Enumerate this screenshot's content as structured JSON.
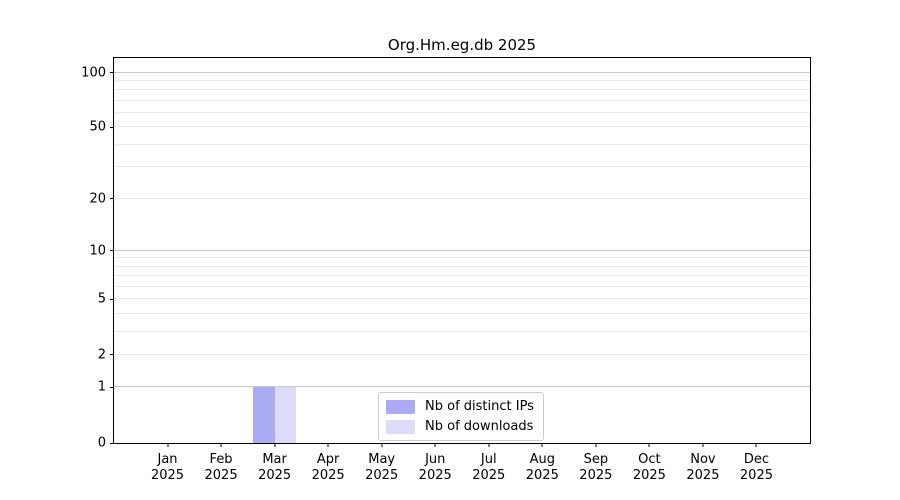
{
  "title": "Org.Hm.eg.db 2025",
  "colors": {
    "background": "#ffffff",
    "axis": "#000000",
    "text": "#000000",
    "grid_major": "#c8c8c8",
    "grid_minor": "#ebebeb",
    "legend_border": "#cccccc",
    "bar_distinct_ips": "#aaaaf5",
    "bar_downloads": "#dcdcfa"
  },
  "chart_data": {
    "type": "bar",
    "title": "Org.Hm.eg.db 2025",
    "categories": [
      "Jan 2025",
      "Feb 2025",
      "Mar 2025",
      "Apr 2025",
      "May 2025",
      "Jun 2025",
      "Jul 2025",
      "Aug 2025",
      "Sep 2025",
      "Oct 2025",
      "Nov 2025",
      "Dec 2025"
    ],
    "series": [
      {
        "name": "Nb of distinct IPs",
        "color": "#aaaaf5",
        "values": [
          0,
          0,
          1,
          0,
          0,
          0,
          0,
          0,
          0,
          0,
          0,
          0
        ]
      },
      {
        "name": "Nb of downloads",
        "color": "#dcdcfa",
        "values": [
          0,
          0,
          1,
          0,
          0,
          0,
          0,
          0,
          0,
          0,
          0,
          0
        ]
      }
    ],
    "xlabel": "",
    "ylabel": "",
    "y_scale": "log1p",
    "ylim": [
      0,
      120
    ],
    "y_ticks": [
      {
        "value": 0,
        "label": "0"
      },
      {
        "value": 1,
        "label": "1"
      },
      {
        "value": 2,
        "label": "2"
      },
      {
        "value": 5,
        "label": "5"
      },
      {
        "value": 10,
        "label": "10"
      },
      {
        "value": 20,
        "label": "20"
      },
      {
        "value": 50,
        "label": "50"
      },
      {
        "value": 100,
        "label": "100"
      }
    ],
    "grid_major_values": [
      1,
      10,
      100
    ],
    "grid_minor_values": [
      2,
      3,
      4,
      5,
      6,
      7,
      8,
      9,
      20,
      30,
      40,
      50,
      60,
      70,
      80,
      90
    ],
    "grid": "on",
    "legend_position": "lower center"
  }
}
